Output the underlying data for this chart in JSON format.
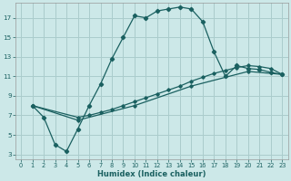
{
  "xlabel": "Humidex (Indice chaleur)",
  "bg_color": "#cce8e8",
  "grid_color": "#aacccc",
  "line_color": "#1a6060",
  "xlim": [
    -0.5,
    23.5
  ],
  "ylim": [
    2.5,
    18.5
  ],
  "xticks": [
    0,
    1,
    2,
    3,
    4,
    5,
    6,
    7,
    8,
    9,
    10,
    11,
    12,
    13,
    14,
    15,
    16,
    17,
    18,
    19,
    20,
    21,
    22,
    23
  ],
  "yticks": [
    3,
    5,
    7,
    9,
    11,
    13,
    15,
    17
  ],
  "line1_x": [
    1,
    2,
    3,
    4,
    5,
    6,
    7,
    8,
    9,
    10,
    11,
    12,
    13,
    14,
    15,
    16,
    17,
    18,
    19,
    20,
    21,
    22,
    23
  ],
  "line1_y": [
    8.0,
    6.8,
    4.0,
    3.3,
    5.6,
    8.0,
    10.2,
    12.8,
    15.0,
    17.2,
    17.0,
    17.7,
    17.9,
    18.1,
    17.9,
    16.6,
    13.5,
    11.0,
    12.1,
    11.8,
    11.7,
    11.4,
    11.2
  ],
  "line2_x": [
    1,
    5,
    6,
    7,
    8,
    9,
    10,
    11,
    12,
    13,
    14,
    15,
    16,
    17,
    18,
    19,
    20,
    21,
    22,
    23
  ],
  "line2_y": [
    8.0,
    6.8,
    7.0,
    7.3,
    7.6,
    8.0,
    8.4,
    8.8,
    9.2,
    9.6,
    10.0,
    10.5,
    10.9,
    11.3,
    11.6,
    11.9,
    12.1,
    12.0,
    11.8,
    11.2
  ],
  "line3_x": [
    1,
    5,
    10,
    15,
    20,
    23
  ],
  "line3_y": [
    8.0,
    6.5,
    8.0,
    10.0,
    11.5,
    11.2
  ]
}
